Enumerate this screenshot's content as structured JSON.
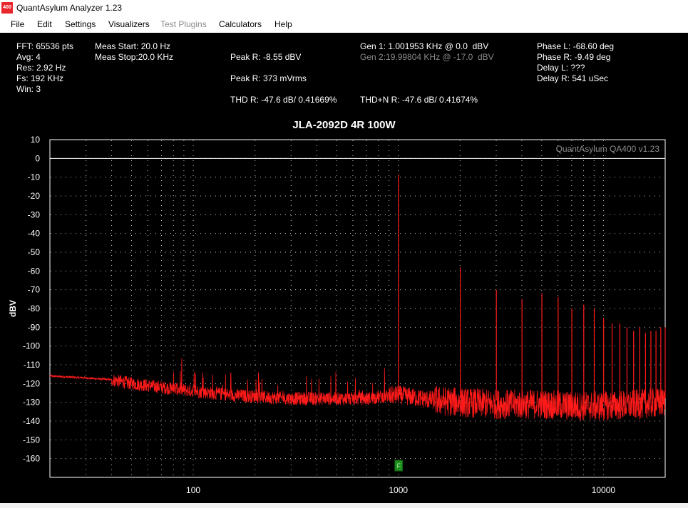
{
  "window": {
    "title": "QuantAsylum Analyzer 1.23",
    "icon_text": "400"
  },
  "menu": {
    "items": [
      {
        "label": "File",
        "enabled": true
      },
      {
        "label": "Edit",
        "enabled": true
      },
      {
        "label": "Settings",
        "enabled": true
      },
      {
        "label": "Visualizers",
        "enabled": true
      },
      {
        "label": "Test Plugins",
        "enabled": false
      },
      {
        "label": "Calculators",
        "enabled": true
      },
      {
        "label": "Help",
        "enabled": true
      }
    ]
  },
  "info": {
    "fft": "FFT: 65536 pts",
    "avg": "Avg: 4",
    "res": "Res: 2.92 Hz",
    "fs": "Fs: 192 KHz",
    "win": "Win: 3",
    "meas_start": "Meas Start: 20.0 Hz",
    "meas_stop": "Meas Stop:20.0 KHz",
    "peak_r_dbv": "Peak R: -8.55 dBV",
    "peak_r_mv": "Peak R: 373 mVrms",
    "thd_r": "THD R: -47.6 dB/ 0.41669%",
    "gen1": "Gen 1: 1.001953 KHz @ 0.0  dBV",
    "gen2": "Gen 2:19.99804 KHz @ -17.0  dBV",
    "thdn_r": "THD+N R: -47.6 dB/ 0.41674%",
    "phase_l": "Phase L: -68.60 deg",
    "phase_r": "Phase R: -9.49 deg",
    "delay_l": "Delay L: ???",
    "delay_r": "Delay R: 541 uSec"
  },
  "colors": {
    "background": "#000000",
    "trace": "#ff1a1a",
    "grid_dot": "#c8c8c8",
    "reference_line": "#ffffff",
    "marker": "#1f8f1f"
  },
  "chart_data": {
    "type": "line",
    "title": "JLA-2092D 4R 100W",
    "watermark": "QuantAsylum QA400 v1.23",
    "ylabel": "dBV",
    "xlabel": "",
    "x_scale": "log",
    "xlim": [
      20,
      20000
    ],
    "ylim": [
      -170,
      10
    ],
    "yticks": [
      10,
      0,
      -10,
      -20,
      -30,
      -40,
      -50,
      -60,
      -70,
      -80,
      -90,
      -100,
      -110,
      -120,
      -130,
      -140,
      -150,
      -160
    ],
    "xticks": [
      100,
      1000,
      10000
    ],
    "xtick_labels": [
      "100",
      "1000",
      "10000"
    ],
    "grid": "dotted",
    "reference_line_y": 0,
    "marker": {
      "label": "F",
      "x": 1000
    },
    "series": [
      {
        "noise_floor": [
          [
            20,
            -116
          ],
          [
            30,
            -117
          ],
          [
            40,
            -118
          ],
          [
            50,
            -120
          ],
          [
            70,
            -122
          ],
          [
            100,
            -124
          ],
          [
            150,
            -126
          ],
          [
            200,
            -127
          ],
          [
            300,
            -128
          ],
          [
            500,
            -128
          ],
          [
            700,
            -128
          ],
          [
            1000,
            -126
          ],
          [
            1500,
            -129
          ],
          [
            2000,
            -130
          ],
          [
            3000,
            -131
          ],
          [
            5000,
            -131
          ],
          [
            7000,
            -132
          ],
          [
            10000,
            -132
          ],
          [
            15000,
            -131
          ],
          [
            20000,
            -130
          ]
        ],
        "peaks": [
          [
            1002,
            -8.55
          ],
          [
            2004,
            -58
          ],
          [
            3006,
            -70
          ],
          [
            4008,
            -75
          ],
          [
            5010,
            -72
          ],
          [
            6012,
            -74
          ],
          [
            7014,
            -80
          ],
          [
            8016,
            -78
          ],
          [
            9018,
            -80
          ],
          [
            10020,
            -85
          ],
          [
            11022,
            -88
          ],
          [
            12024,
            -88
          ],
          [
            13026,
            -90
          ],
          [
            14028,
            -92
          ],
          [
            15030,
            -90
          ],
          [
            16032,
            -93
          ],
          [
            17034,
            -92
          ],
          [
            18036,
            -92
          ],
          [
            19038,
            -90
          ],
          [
            20000,
            -90
          ]
        ]
      }
    ]
  }
}
